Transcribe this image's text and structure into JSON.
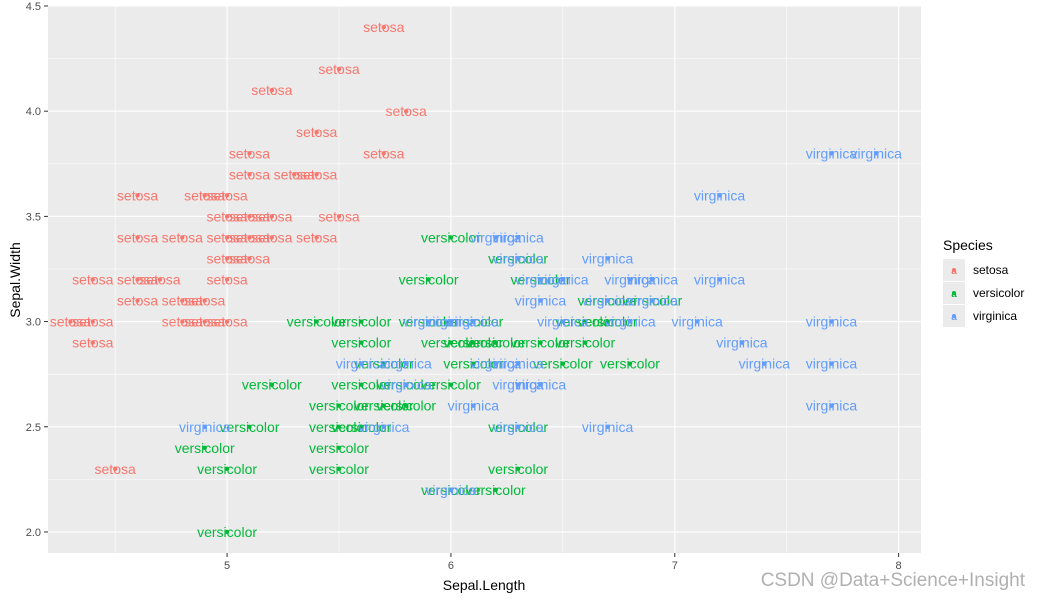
{
  "colors": {
    "panel_bg": "#EBEBEB",
    "grid": "#FFFFFF",
    "setosa": "#F8766D",
    "versicolor": "#00BA38",
    "virginica": "#619CFF"
  },
  "watermark": "CSDN @Data+Science+Insight",
  "chart_data": {
    "type": "scatter",
    "xlabel": "Sepal.Length",
    "ylabel": "Sepal.Width",
    "xlim": [
      4.2,
      8.1
    ],
    "ylim": [
      1.9,
      4.5
    ],
    "x_ticks": [
      5,
      6,
      7,
      8
    ],
    "y_ticks": [
      2.0,
      2.5,
      3.0,
      3.5,
      4.0,
      4.5
    ],
    "x_tick_labels": [
      "5",
      "6",
      "7",
      "8"
    ],
    "y_tick_labels": [
      "2.0",
      "2.5",
      "3.0",
      "3.5",
      "4.0",
      "4.5"
    ],
    "legend": {
      "title": "Species",
      "position": "right",
      "entries": [
        "setosa",
        "versicolor",
        "virginica"
      ]
    },
    "series": [
      {
        "name": "setosa",
        "points": [
          [
            5.7,
            4.4
          ],
          [
            5.5,
            4.2
          ],
          [
            5.2,
            4.1
          ],
          [
            5.8,
            4.0
          ],
          [
            5.4,
            3.9
          ],
          [
            5.1,
            3.8
          ],
          [
            5.7,
            3.8
          ],
          [
            5.1,
            3.7
          ],
          [
            5.3,
            3.7
          ],
          [
            5.4,
            3.7
          ],
          [
            4.6,
            3.6
          ],
          [
            4.9,
            3.6
          ],
          [
            5.0,
            3.6
          ],
          [
            5.0,
            3.5
          ],
          [
            5.1,
            3.5
          ],
          [
            5.2,
            3.5
          ],
          [
            5.5,
            3.5
          ],
          [
            4.6,
            3.4
          ],
          [
            4.8,
            3.4
          ],
          [
            5.0,
            3.4
          ],
          [
            5.1,
            3.4
          ],
          [
            5.2,
            3.4
          ],
          [
            5.4,
            3.4
          ],
          [
            5.0,
            3.3
          ],
          [
            5.1,
            3.3
          ],
          [
            4.4,
            3.2
          ],
          [
            4.6,
            3.2
          ],
          [
            4.7,
            3.2
          ],
          [
            5.0,
            3.2
          ],
          [
            4.6,
            3.1
          ],
          [
            4.8,
            3.1
          ],
          [
            4.9,
            3.1
          ],
          [
            4.3,
            3.0
          ],
          [
            4.4,
            3.0
          ],
          [
            4.8,
            3.0
          ],
          [
            4.9,
            3.0
          ],
          [
            5.0,
            3.0
          ],
          [
            4.4,
            2.9
          ],
          [
            4.5,
            2.3
          ]
        ]
      },
      {
        "name": "versicolor",
        "points": [
          [
            6.0,
            3.4
          ],
          [
            5.9,
            3.2
          ],
          [
            6.3,
            3.3
          ],
          [
            6.4,
            3.2
          ],
          [
            6.9,
            3.1
          ],
          [
            6.7,
            3.1
          ],
          [
            6.6,
            3.0
          ],
          [
            5.4,
            3.0
          ],
          [
            5.6,
            3.0
          ],
          [
            5.9,
            3.0
          ],
          [
            6.1,
            3.0
          ],
          [
            6.7,
            3.0
          ],
          [
            5.6,
            2.9
          ],
          [
            6.0,
            2.9
          ],
          [
            6.1,
            2.9
          ],
          [
            6.2,
            2.9
          ],
          [
            6.4,
            2.9
          ],
          [
            6.6,
            2.9
          ],
          [
            5.7,
            2.8
          ],
          [
            6.1,
            2.8
          ],
          [
            6.5,
            2.8
          ],
          [
            6.8,
            2.8
          ],
          [
            5.2,
            2.7
          ],
          [
            5.6,
            2.7
          ],
          [
            5.8,
            2.7
          ],
          [
            6.0,
            2.7
          ],
          [
            6.3,
            2.5
          ],
          [
            5.5,
            2.6
          ],
          [
            5.7,
            2.6
          ],
          [
            5.8,
            2.6
          ],
          [
            5.1,
            2.5
          ],
          [
            5.5,
            2.5
          ],
          [
            5.6,
            2.5
          ],
          [
            4.9,
            2.4
          ],
          [
            5.5,
            2.4
          ],
          [
            5.0,
            2.3
          ],
          [
            5.5,
            2.3
          ],
          [
            6.3,
            2.3
          ],
          [
            6.0,
            2.2
          ],
          [
            6.2,
            2.2
          ],
          [
            5.0,
            2.0
          ]
        ]
      },
      {
        "name": "virginica",
        "points": [
          [
            7.7,
            3.8
          ],
          [
            7.9,
            3.8
          ],
          [
            7.2,
            3.6
          ],
          [
            6.2,
            3.4
          ],
          [
            6.3,
            3.4
          ],
          [
            6.3,
            3.3
          ],
          [
            6.7,
            3.3
          ],
          [
            6.4,
            3.2
          ],
          [
            6.5,
            3.2
          ],
          [
            6.8,
            3.2
          ],
          [
            6.9,
            3.2
          ],
          [
            7.2,
            3.2
          ],
          [
            6.4,
            3.1
          ],
          [
            6.7,
            3.1
          ],
          [
            6.9,
            3.1
          ],
          [
            5.9,
            3.0
          ],
          [
            6.0,
            3.0
          ],
          [
            6.1,
            3.0
          ],
          [
            6.5,
            3.0
          ],
          [
            6.8,
            3.0
          ],
          [
            7.1,
            3.0
          ],
          [
            7.7,
            3.0
          ],
          [
            7.3,
            2.9
          ],
          [
            5.6,
            2.8
          ],
          [
            5.8,
            2.8
          ],
          [
            6.2,
            2.8
          ],
          [
            6.3,
            2.8
          ],
          [
            7.4,
            2.8
          ],
          [
            7.7,
            2.8
          ],
          [
            5.8,
            2.7
          ],
          [
            6.3,
            2.7
          ],
          [
            6.4,
            2.7
          ],
          [
            6.1,
            2.6
          ],
          [
            7.7,
            2.6
          ],
          [
            4.9,
            2.5
          ],
          [
            5.7,
            2.5
          ],
          [
            6.3,
            2.5
          ],
          [
            6.7,
            2.5
          ],
          [
            6.0,
            2.2
          ]
        ]
      }
    ]
  }
}
